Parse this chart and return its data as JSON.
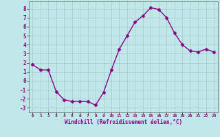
{
  "x": [
    0,
    1,
    2,
    3,
    4,
    5,
    6,
    7,
    8,
    9,
    10,
    11,
    12,
    13,
    14,
    15,
    16,
    17,
    18,
    19,
    20,
    21,
    22,
    23
  ],
  "y": [
    1.8,
    1.2,
    1.2,
    -1.2,
    -2.1,
    -2.3,
    -2.3,
    -2.3,
    -2.7,
    -1.3,
    1.2,
    3.5,
    5.0,
    6.5,
    7.2,
    8.1,
    7.9,
    7.0,
    5.3,
    4.0,
    3.3,
    3.2,
    3.5,
    3.2
  ],
  "color": "#880088",
  "bg_color": "#c0e8e8",
  "grid_color": "#aacccc",
  "xlabel": "Windchill (Refroidissement éolien,°C)",
  "ylim": [
    -3.5,
    8.8
  ],
  "xlim": [
    -0.5,
    23.5
  ],
  "yticks": [
    -3,
    -2,
    -1,
    0,
    1,
    2,
    3,
    4,
    5,
    6,
    7,
    8
  ],
  "xticks": [
    0,
    1,
    2,
    3,
    4,
    5,
    6,
    7,
    8,
    9,
    10,
    11,
    12,
    13,
    14,
    15,
    16,
    17,
    18,
    19,
    20,
    21,
    22,
    23
  ],
  "marker": "D",
  "markersize": 2.5,
  "linewidth": 1.0
}
